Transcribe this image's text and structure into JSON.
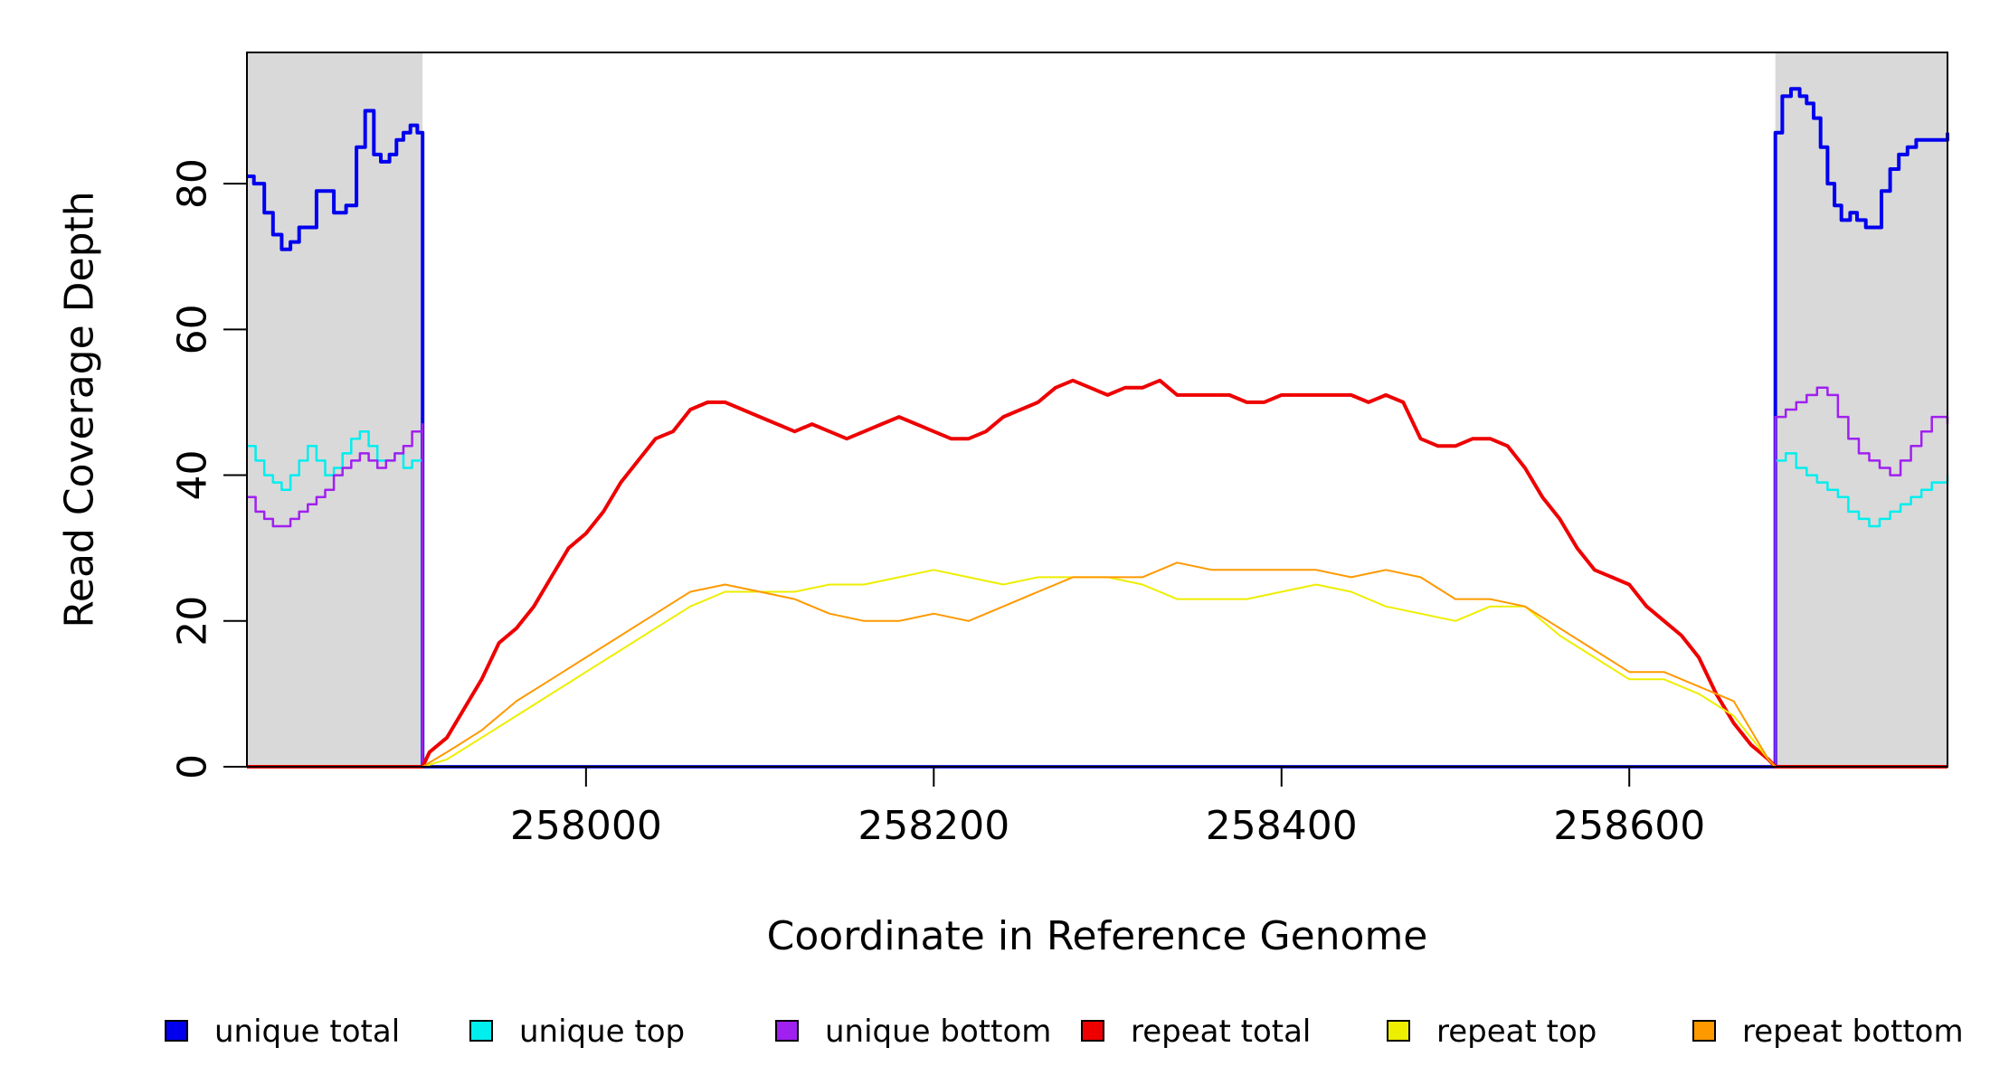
{
  "chart_data": {
    "type": "line",
    "title": "",
    "xlabel": "Coordinate in Reference Genome",
    "ylabel": "Read Coverage Depth",
    "xlim": [
      257805,
      258783
    ],
    "ylim": [
      0,
      98
    ],
    "xticks": [
      258000,
      258200,
      258400,
      258600
    ],
    "xtick_labels": [
      "258000",
      "258200",
      "258400",
      "258600"
    ],
    "yticks": [
      0,
      20,
      40,
      60,
      80
    ],
    "ytick_labels": [
      "0",
      "20",
      "40",
      "60",
      "80"
    ],
    "grid": false,
    "legend_position": "bottom",
    "shaded_regions": [
      {
        "x": [
          257805,
          257906
        ],
        "color": "#d9d9d9"
      },
      {
        "x": [
          258684,
          258783
        ],
        "color": "#d9d9d9"
      }
    ],
    "series": [
      {
        "name": "unique total",
        "color": "#0000ee",
        "width": 4,
        "step": true,
        "x": [
          257805,
          257809,
          257815,
          257820,
          257825,
          257830,
          257835,
          257845,
          257855,
          257862,
          257868,
          257873,
          257878,
          257882,
          257887,
          257891,
          257895,
          257899,
          257903,
          257906,
          257906,
          258684,
          258684,
          258688,
          258693,
          258698,
          258702,
          258706,
          258710,
          258714,
          258718,
          258722,
          258727,
          258731,
          258736,
          258740,
          258745,
          258750,
          258755,
          258760,
          258765,
          258770,
          258775,
          258783
        ],
        "y": [
          81,
          80,
          76,
          73,
          71,
          72,
          74,
          79,
          76,
          77,
          85,
          90,
          84,
          83,
          84,
          86,
          87,
          88,
          87,
          84,
          0,
          0,
          87,
          92,
          93,
          92,
          91,
          89,
          85,
          80,
          77,
          75,
          76,
          75,
          74,
          74,
          79,
          82,
          84,
          85,
          86,
          86,
          86,
          87
        ]
      },
      {
        "name": "unique top",
        "color": "#00eeee",
        "width": 2.5,
        "step": true,
        "x": [
          257805,
          257810,
          257815,
          257820,
          257825,
          257830,
          257835,
          257840,
          257845,
          257850,
          257855,
          257860,
          257865,
          257870,
          257875,
          257880,
          257885,
          257890,
          257895,
          257900,
          257906,
          257906,
          258684,
          258684,
          258690,
          258696,
          258702,
          258708,
          258714,
          258720,
          258726,
          258732,
          258738,
          258744,
          258750,
          258756,
          258762,
          258768,
          258774,
          258783
        ],
        "y": [
          44,
          42,
          40,
          39,
          38,
          40,
          42,
          44,
          42,
          40,
          41,
          43,
          45,
          46,
          44,
          42,
          42,
          43,
          41,
          42,
          41,
          0,
          0,
          42,
          43,
          41,
          40,
          39,
          38,
          37,
          35,
          34,
          33,
          34,
          35,
          36,
          37,
          38,
          39,
          40
        ]
      },
      {
        "name": "unique bottom",
        "color": "#a020f0",
        "width": 2.5,
        "step": true,
        "x": [
          257805,
          257810,
          257815,
          257820,
          257825,
          257830,
          257835,
          257840,
          257845,
          257850,
          257855,
          257860,
          257865,
          257870,
          257875,
          257880,
          257885,
          257890,
          257895,
          257900,
          257906,
          257906,
          258684,
          258684,
          258690,
          258696,
          258702,
          258708,
          258714,
          258720,
          258726,
          258732,
          258738,
          258744,
          258750,
          258756,
          258762,
          258768,
          258774,
          258783
        ],
        "y": [
          37,
          35,
          34,
          33,
          33,
          34,
          35,
          36,
          37,
          38,
          40,
          41,
          42,
          43,
          42,
          41,
          42,
          43,
          44,
          46,
          47,
          0,
          0,
          48,
          49,
          50,
          51,
          52,
          51,
          48,
          45,
          43,
          42,
          41,
          40,
          42,
          44,
          46,
          48,
          47
        ]
      },
      {
        "name": "repeat total",
        "color": "#ee0000",
        "width": 4,
        "step": false,
        "x": [
          257805,
          257906,
          257910,
          257920,
          257930,
          257940,
          257950,
          257960,
          257970,
          257980,
          257990,
          258000,
          258010,
          258020,
          258030,
          258040,
          258050,
          258060,
          258070,
          258080,
          258090,
          258100,
          258110,
          258120,
          258130,
          258140,
          258150,
          258160,
          258170,
          258180,
          258190,
          258200,
          258210,
          258220,
          258230,
          258240,
          258250,
          258260,
          258270,
          258280,
          258290,
          258300,
          258310,
          258320,
          258330,
          258340,
          258350,
          258360,
          258370,
          258380,
          258390,
          258400,
          258410,
          258420,
          258430,
          258440,
          258450,
          258460,
          258470,
          258480,
          258490,
          258500,
          258510,
          258520,
          258530,
          258540,
          258550,
          258560,
          258570,
          258580,
          258590,
          258600,
          258610,
          258620,
          258630,
          258640,
          258650,
          258660,
          258670,
          258680,
          258684,
          258783
        ],
        "y": [
          0,
          0,
          2,
          4,
          8,
          12,
          17,
          19,
          22,
          26,
          30,
          32,
          35,
          39,
          42,
          45,
          46,
          49,
          50,
          50,
          49,
          48,
          47,
          46,
          47,
          46,
          45,
          46,
          47,
          48,
          47,
          46,
          45,
          45,
          46,
          48,
          49,
          50,
          52,
          53,
          52,
          51,
          52,
          52,
          53,
          51,
          51,
          51,
          51,
          50,
          50,
          51,
          51,
          51,
          51,
          51,
          50,
          51,
          50,
          45,
          44,
          44,
          45,
          45,
          44,
          41,
          37,
          34,
          30,
          27,
          26,
          25,
          22,
          20,
          18,
          15,
          10,
          6,
          3,
          1,
          0,
          0
        ]
      },
      {
        "name": "repeat top",
        "color": "#eeee00",
        "width": 2,
        "step": false,
        "x": [
          257805,
          257906,
          257920,
          257940,
          257960,
          257980,
          258000,
          258020,
          258040,
          258060,
          258080,
          258100,
          258120,
          258140,
          258160,
          258180,
          258200,
          258220,
          258240,
          258260,
          258280,
          258300,
          258320,
          258340,
          258360,
          258380,
          258400,
          258420,
          258440,
          258460,
          258480,
          258500,
          258520,
          258540,
          258560,
          258580,
          258600,
          258620,
          258640,
          258660,
          258680,
          258684,
          258783
        ],
        "y": [
          0,
          0,
          1,
          4,
          7,
          10,
          13,
          16,
          19,
          22,
          24,
          24,
          24,
          25,
          25,
          26,
          27,
          26,
          25,
          26,
          26,
          26,
          25,
          23,
          23,
          23,
          24,
          25,
          24,
          22,
          21,
          20,
          22,
          22,
          18,
          15,
          12,
          12,
          10,
          7,
          1,
          0,
          0
        ]
      },
      {
        "name": "repeat bottom",
        "color": "#ff9900",
        "width": 2,
        "step": false,
        "x": [
          257805,
          257906,
          257920,
          257940,
          257960,
          257980,
          258000,
          258020,
          258040,
          258060,
          258080,
          258100,
          258120,
          258140,
          258160,
          258180,
          258200,
          258220,
          258240,
          258260,
          258280,
          258300,
          258320,
          258340,
          258360,
          258380,
          258400,
          258420,
          258440,
          258460,
          258480,
          258500,
          258520,
          258540,
          258560,
          258580,
          258600,
          258620,
          258640,
          258660,
          258680,
          258684,
          258783
        ],
        "y": [
          0,
          0,
          2,
          5,
          9,
          12,
          15,
          18,
          21,
          24,
          25,
          24,
          23,
          21,
          20,
          20,
          21,
          20,
          22,
          24,
          26,
          26,
          26,
          28,
          27,
          27,
          27,
          27,
          26,
          27,
          26,
          23,
          23,
          22,
          19,
          16,
          13,
          13,
          11,
          9,
          1,
          0,
          0
        ]
      }
    ]
  }
}
